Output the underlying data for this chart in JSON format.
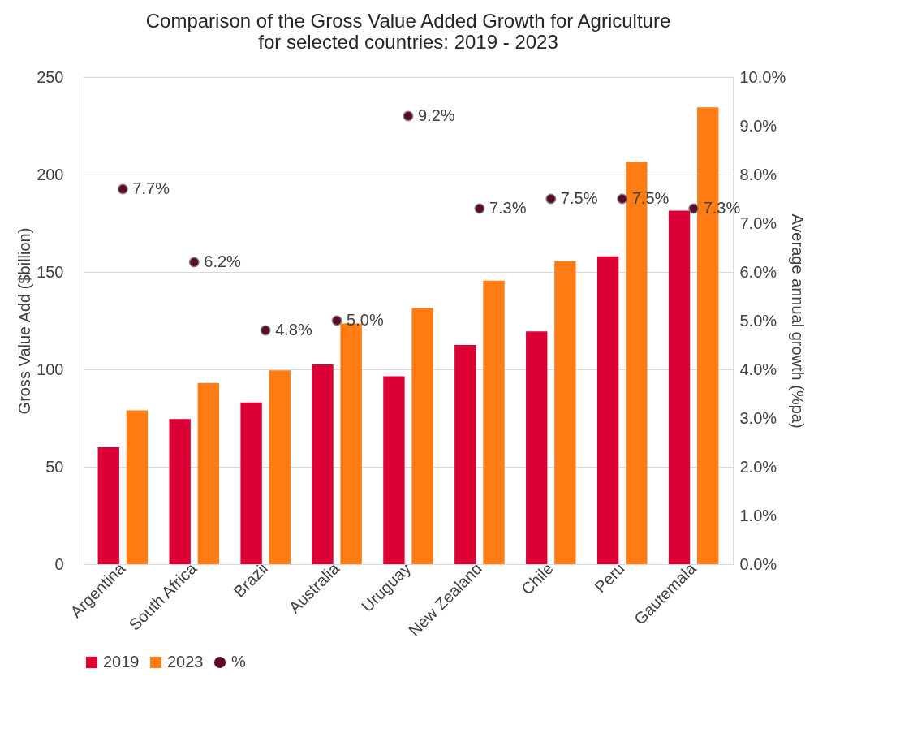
{
  "chart_data": {
    "type": "bar",
    "title": "Comparison of the Gross Value Added Growth for Agriculture\nfor selected countries:  2019 - 2023",
    "ylabel": "Gross Value Add ($billion)",
    "y2label": "Average annual growth (%pa)",
    "categories": [
      "Argentina",
      "South Africa",
      "Brazil",
      "Australia",
      "Uruguay",
      "New Zealand",
      "Chile",
      "Peru",
      "Gautemala"
    ],
    "series": [
      {
        "name": "2019",
        "color": "#dc0037",
        "values": [
          60,
          74.5,
          83,
          102.5,
          96.5,
          112.5,
          119.5,
          158,
          181.5
        ]
      },
      {
        "name": "2023",
        "color": "#ff7b13",
        "values": [
          79,
          93,
          99.5,
          123.5,
          131.5,
          145.5,
          155.5,
          206.5,
          234.5
        ]
      },
      {
        "name": "%",
        "type": "scatter",
        "axis": "y2",
        "marker": "circle",
        "color": "#5c0a2a",
        "values": [
          7.7,
          6.2,
          4.8,
          5.0,
          9.2,
          7.3,
          7.5,
          7.5,
          7.3
        ],
        "value_labels": [
          "7.7%",
          "6.2%",
          "4.8%",
          "5.0%",
          "9.2%",
          "7.3%",
          "7.5%",
          "7.5%",
          "7.3%"
        ]
      }
    ],
    "ylim": [
      0,
      250
    ],
    "yticks": [
      0,
      50,
      100,
      150,
      200,
      250
    ],
    "y2lim": [
      0,
      10
    ],
    "y2ticks": [
      {
        "value": 0,
        "label": "0.0%"
      },
      {
        "value": 1,
        "label": "1.0%"
      },
      {
        "value": 2,
        "label": "2.0%"
      },
      {
        "value": 3,
        "label": "3.0%"
      },
      {
        "value": 4,
        "label": "4.0%"
      },
      {
        "value": 5,
        "label": "5.0%"
      },
      {
        "value": 6,
        "label": "6.0%"
      },
      {
        "value": 7,
        "label": "7.0%"
      },
      {
        "value": 8,
        "label": "8.0%"
      },
      {
        "value": 9,
        "label": "9.0%"
      },
      {
        "value": 10,
        "label": "10.0%"
      }
    ],
    "grid": "y",
    "legend": "bottom"
  }
}
